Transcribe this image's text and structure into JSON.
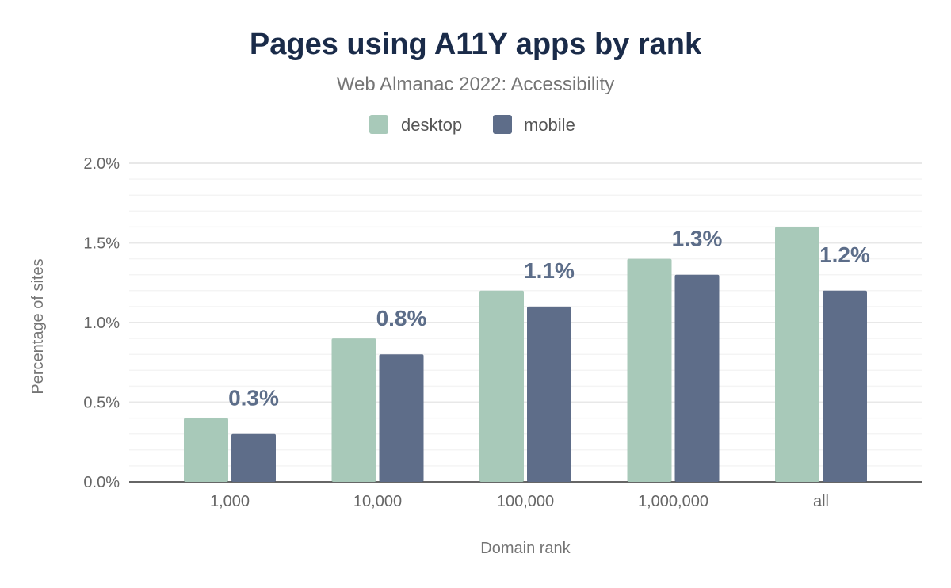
{
  "chart_data": {
    "type": "bar",
    "title": "Pages using A11Y apps by rank",
    "subtitle": "Web Almanac 2022: Accessibility",
    "xlabel": "Domain rank",
    "ylabel": "Percentage of sites",
    "categories": [
      "1,000",
      "10,000",
      "100,000",
      "1,000,000",
      "all"
    ],
    "series": [
      {
        "name": "desktop",
        "color": "#a8c9b9",
        "values": [
          0.4,
          0.9,
          1.2,
          1.4,
          1.6
        ],
        "show_labels": false
      },
      {
        "name": "mobile",
        "color": "#5e6d89",
        "values": [
          0.3,
          0.8,
          1.1,
          1.3,
          1.2
        ],
        "show_labels": true
      }
    ],
    "data_labels": [
      "0.3%",
      "0.8%",
      "1.1%",
      "1.3%",
      "1.2%"
    ],
    "ylim": [
      0,
      2.0
    ],
    "yticks": [
      "0.0%",
      "0.5%",
      "1.0%",
      "1.5%",
      "2.0%"
    ],
    "grid": true,
    "legend_position": "top-center"
  }
}
